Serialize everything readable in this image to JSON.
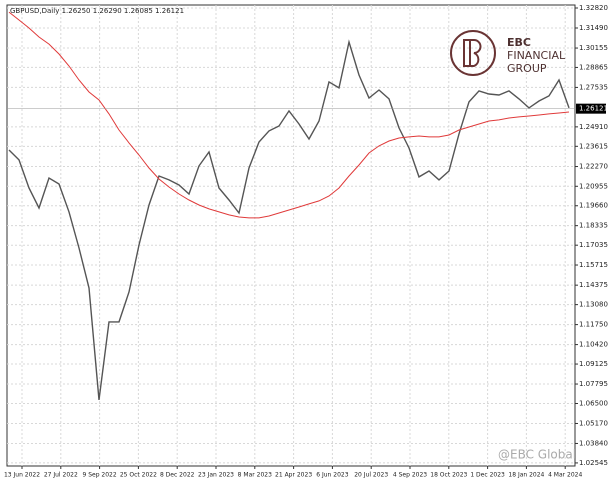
{
  "chart_data": {
    "type": "line",
    "header": "GBPUSD,Daily 1.26250 1.26290 1.26085 1.26121",
    "last_price": 1.26121,
    "series": [
      {
        "name": "GBPUSD",
        "color": "#555555",
        "values": [
          1.2337,
          1.2271,
          1.2084,
          1.1951,
          1.2151,
          1.2111,
          1.1925,
          1.1685,
          1.1419,
          1.0674,
          1.1193,
          1.1193,
          1.1392,
          1.1705,
          1.1971,
          1.2164,
          1.2138,
          1.2104,
          1.2044,
          1.2231,
          1.2324,
          1.2084,
          1.2004,
          1.1918,
          1.2217,
          1.239,
          1.2464,
          1.2497,
          1.2597,
          1.251,
          1.241,
          1.253,
          1.279,
          1.275,
          1.3056,
          1.2836,
          1.2683,
          1.2736,
          1.2677,
          1.2484,
          1.235,
          1.2158,
          1.2197,
          1.2138,
          1.2197,
          1.2444,
          1.2657,
          1.273,
          1.271,
          1.2703,
          1.273,
          1.2677,
          1.2617,
          1.2663,
          1.2697,
          1.2803,
          1.2617
        ]
      },
      {
        "name": "MA",
        "color": "#e03a3a",
        "values": [
          1.3255,
          1.3202,
          1.3149,
          1.3089,
          1.3042,
          1.2976,
          1.2896,
          1.2803,
          1.2723,
          1.267,
          1.2577,
          1.247,
          1.2384,
          1.2304,
          1.2217,
          1.2144,
          1.2091,
          1.2044,
          1.2004,
          1.1971,
          1.1945,
          1.1925,
          1.1905,
          1.1891,
          1.1885,
          1.1885,
          1.1898,
          1.1918,
          1.1938,
          1.1958,
          1.1978,
          1.1998,
          1.2031,
          1.2084,
          1.2164,
          1.2237,
          1.2317,
          1.2364,
          1.2397,
          1.2417,
          1.2424,
          1.243,
          1.2424,
          1.2424,
          1.2437,
          1.247,
          1.249,
          1.251,
          1.253,
          1.2537,
          1.255,
          1.2557,
          1.2563,
          1.257,
          1.2577,
          1.2583,
          1.259
        ]
      }
    ],
    "ylim": [
      1.0234,
      1.3302
    ],
    "yticks": [
      {
        "value": 1.3282,
        "label": "1.32820"
      },
      {
        "value": 1.3149,
        "label": "1.31490"
      },
      {
        "value": 1.30155,
        "label": "1.30155"
      },
      {
        "value": 1.28865,
        "label": "1.28865"
      },
      {
        "value": 1.27535,
        "label": "1.27535"
      },
      {
        "value": 1.2491,
        "label": "1.24910"
      },
      {
        "value": 1.23615,
        "label": "1.23615"
      },
      {
        "value": 1.2227,
        "label": "1.22270"
      },
      {
        "value": 1.20955,
        "label": "1.20955"
      },
      {
        "value": 1.1966,
        "label": "1.19660"
      },
      {
        "value": 1.18335,
        "label": "1.18335"
      },
      {
        "value": 1.17035,
        "label": "1.17035"
      },
      {
        "value": 1.15715,
        "label": "1.15715"
      },
      {
        "value": 1.14375,
        "label": "1.14375"
      },
      {
        "value": 1.1308,
        "label": "1.13080"
      },
      {
        "value": 1.1175,
        "label": "1.11750"
      },
      {
        "value": 1.1042,
        "label": "1.10420"
      },
      {
        "value": 1.09125,
        "label": "1.09125"
      },
      {
        "value": 1.07795,
        "label": "1.07795"
      },
      {
        "value": 1.065,
        "label": "1.06500"
      },
      {
        "value": 1.0517,
        "label": "1.05170"
      },
      {
        "value": 1.0384,
        "label": "1.03840"
      },
      {
        "value": 1.02545,
        "label": "1.02545"
      }
    ],
    "xtick_labels": [
      "13 Jun 2022",
      "27 Jul 2022",
      "9 Sep 2022",
      "25 Oct 2022",
      "8 Dec 2022",
      "23 Jan 2023",
      "8 Mar 2023",
      "21 Apr 2023",
      "6 Jun 2023",
      "20 Jul 2023",
      "4 Sep 2023",
      "18 Oct 2023",
      "1 Dec 2023",
      "18 Jan 2024",
      "4 Mar 2024"
    ],
    "grid": true,
    "logo": {
      "line1": "EBC",
      "line2": "FINANCIAL",
      "line3": "GROUP"
    },
    "watermark": "@EBC Global"
  }
}
